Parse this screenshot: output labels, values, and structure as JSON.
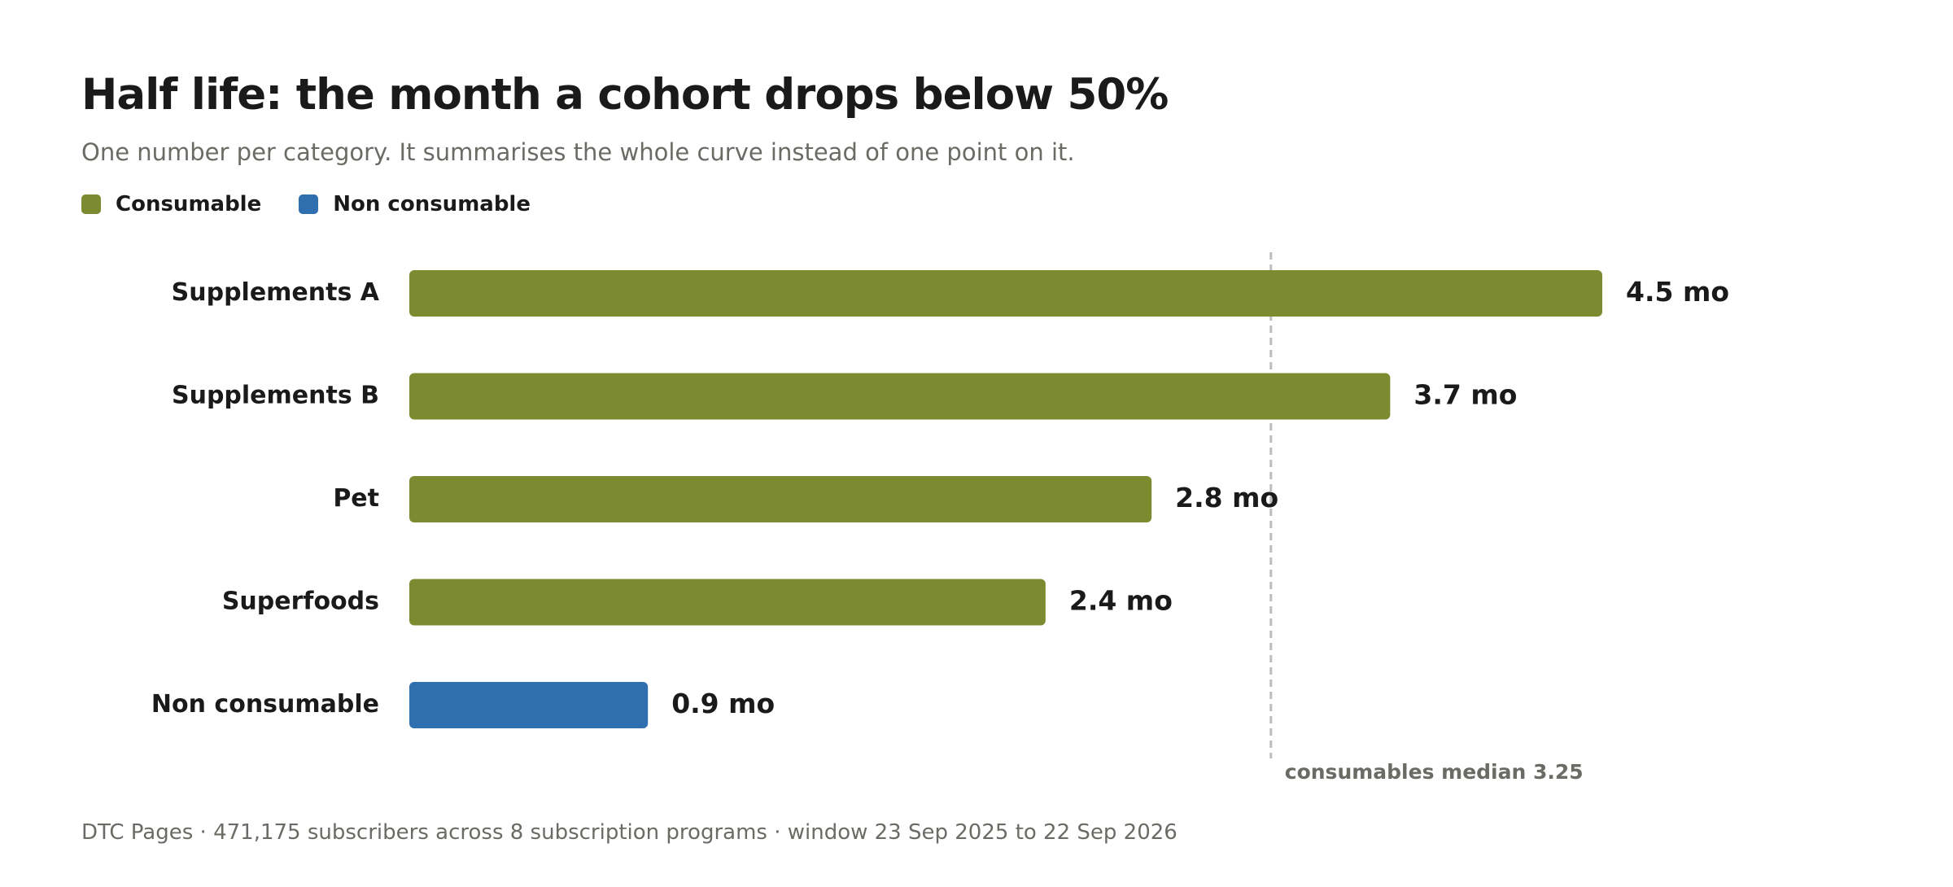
{
  "chart_data": {
    "type": "bar",
    "orientation": "horizontal",
    "title": "Half life: the month a cohort drops below 50%",
    "subtitle": "One number per category. It summarises the whole curve instead of one point on it.",
    "value_unit": "mo",
    "xlim": [
      0,
      5.0
    ],
    "grid": false,
    "legend_placement": "top-left",
    "legend": [
      {
        "key": "consumable",
        "label": "Consumable",
        "color": "#7c8a30"
      },
      {
        "key": "non_consumable",
        "label": "Non consumable",
        "color": "#2f6fb0"
      }
    ],
    "categories": [
      "Supplements A",
      "Supplements B",
      "Pet",
      "Superfoods",
      "Non consumable"
    ],
    "values": [
      4.5,
      3.7,
      2.8,
      2.4,
      0.9
    ],
    "value_labels": [
      "4.5 mo",
      "3.7 mo",
      "2.8 mo",
      "2.4 mo",
      "0.9 mo"
    ],
    "groups": [
      "consumable",
      "consumable",
      "consumable",
      "consumable",
      "non_consumable"
    ],
    "reference_line": {
      "value": 3.25,
      "label": "consumables median 3.25",
      "style": "dashed",
      "color": "#bdbdbd"
    }
  },
  "footer": "DTC Pages · 471,175 subscribers across 8 subscription programs · window 23 Sep 2025 to 22 Sep 2026"
}
